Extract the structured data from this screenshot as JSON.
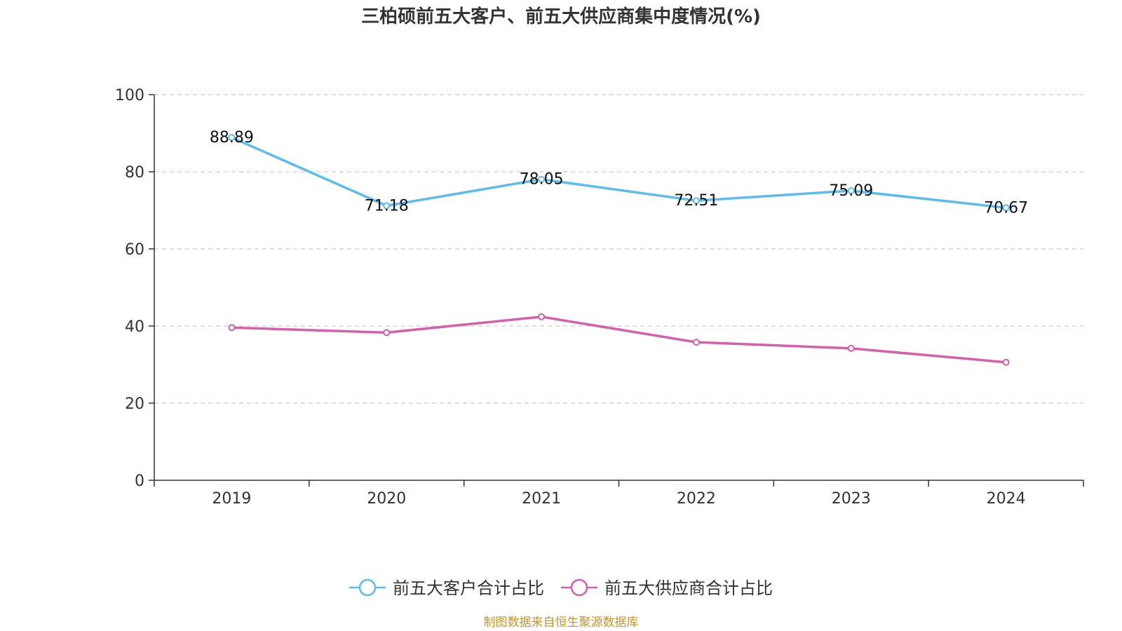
{
  "chart_data": {
    "type": "line",
    "title": "三柏硕前五大客户、前五大供应商集中度情况(%)",
    "xlabel": "",
    "ylabel": "",
    "categories": [
      "2019",
      "2020",
      "2021",
      "2022",
      "2023",
      "2024"
    ],
    "ylim": [
      0,
      100
    ],
    "yticks": [
      0,
      20,
      40,
      60,
      80,
      100
    ],
    "grid": true,
    "legend_position": "bottom-center",
    "series": [
      {
        "name": "前五大客户合计占比",
        "color": "#5bbcf0",
        "values": [
          88.89,
          71.18,
          78.05,
          72.51,
          75.09,
          70.67
        ],
        "labels": [
          "88.89",
          "71.18",
          "78.05",
          "72.51",
          "75.09",
          "70.67"
        ],
        "show_labels": true
      },
      {
        "name": "前五大供应商合计占比",
        "color": "#d65fab",
        "values": [
          39.6,
          38.3,
          42.4,
          35.8,
          34.2,
          30.6
        ],
        "show_labels": false
      }
    ],
    "source": "制图数据来自恒生聚源数据库"
  }
}
